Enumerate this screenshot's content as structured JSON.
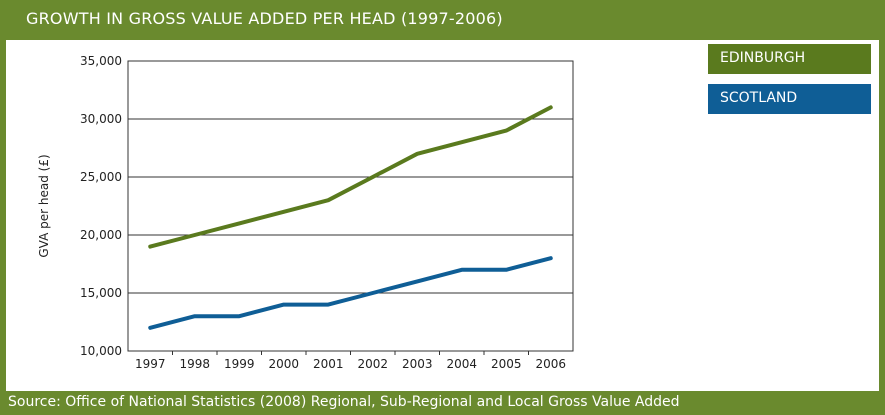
{
  "chart_data": {
    "type": "line",
    "title": "GROWTH IN GROSS VALUE ADDED PER HEAD (1997-2006)",
    "xlabel": "",
    "ylabel": "GVA per head (£)",
    "categories": [
      "1997",
      "1998",
      "1999",
      "2000",
      "2001",
      "2002",
      "2003",
      "2004",
      "2005",
      "2006"
    ],
    "ylim": [
      10000,
      35000
    ],
    "yticks": [
      10000,
      15000,
      20000,
      25000,
      30000,
      35000
    ],
    "ytick_labels": [
      "10,000",
      "15,000",
      "20,000",
      "25,000",
      "30,000",
      "35,000"
    ],
    "grid": true,
    "legend_position": "top-right",
    "series": [
      {
        "name": "EDINBURGH",
        "color": "#5a7a1e",
        "values": [
          19000,
          20000,
          21000,
          22000,
          23000,
          25000,
          27000,
          28000,
          29000,
          31000
        ]
      },
      {
        "name": "SCOTLAND",
        "color": "#0f5e96",
        "values": [
          12000,
          13000,
          13000,
          14000,
          14000,
          15000,
          16000,
          17000,
          17000,
          18000
        ]
      }
    ]
  },
  "source": "Source:  Office of National Statistics (2008) Regional, Sub-Regional and Local Gross Value Added"
}
